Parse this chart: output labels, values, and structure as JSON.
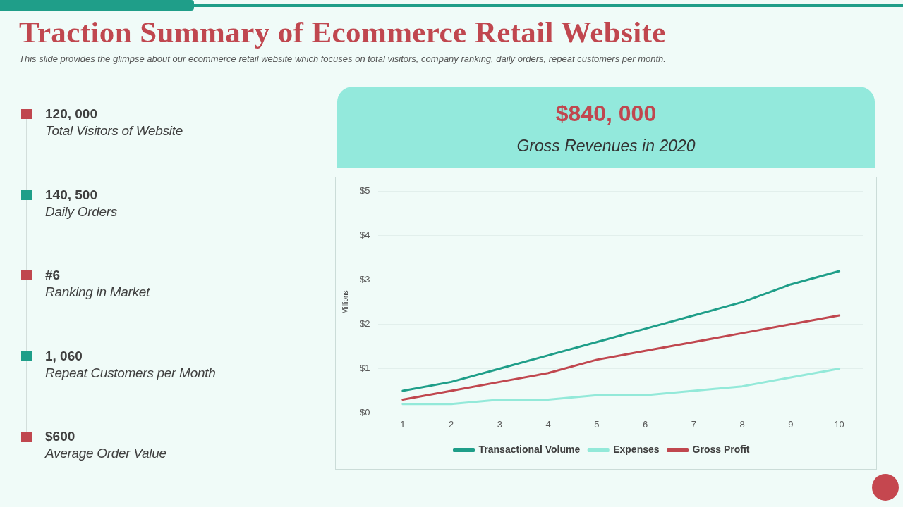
{
  "chart_data": {
    "type": "line",
    "title": "Traction Summary of Ecommerce Retail Website",
    "subtitle": "This slide provides the glimpse about our ecommerce retail website which focuses on total visitors, company ranking, daily orders, repeat customers per month.",
    "ylabel": "Millions",
    "categories": [
      "1",
      "2",
      "3",
      "4",
      "5",
      "6",
      "7",
      "8",
      "9",
      "10"
    ],
    "series": [
      {
        "name": "Transactional Volume",
        "color": "#1f9e89",
        "values": [
          0.5,
          0.7,
          1.0,
          1.3,
          1.6,
          1.9,
          2.2,
          2.5,
          2.9,
          3.2
        ]
      },
      {
        "name": "Expenses",
        "color": "#93e9d9",
        "values": [
          0.2,
          0.2,
          0.3,
          0.3,
          0.4,
          0.4,
          0.5,
          0.6,
          0.8,
          1.0
        ]
      },
      {
        "name": "Gross Profit",
        "color": "#c0474f",
        "values": [
          0.3,
          0.5,
          0.7,
          0.9,
          1.2,
          1.4,
          1.6,
          1.8,
          2.0,
          2.2
        ]
      }
    ],
    "ylim": [
      0,
      5
    ],
    "yticks": [
      {
        "value": 0,
        "label": "$0"
      },
      {
        "value": 1,
        "label": "$1"
      },
      {
        "value": 2,
        "label": "$2"
      },
      {
        "value": 3,
        "label": "$3"
      },
      {
        "value": 4,
        "label": "$4"
      },
      {
        "value": 5,
        "label": "$5"
      }
    ],
    "grid": "y",
    "legend": "bottom",
    "marker": "none",
    "line_style": "solid",
    "annotations": [
      "120, 000",
      "Total Visitors of Website",
      "140, 500",
      "Daily Orders",
      "#6",
      "Ranking in Market",
      "1, 060",
      "Repeat Customers per Month",
      "$600",
      "Average Order Value",
      "$840, 000",
      "Gross Revenues in 2020"
    ]
  }
}
